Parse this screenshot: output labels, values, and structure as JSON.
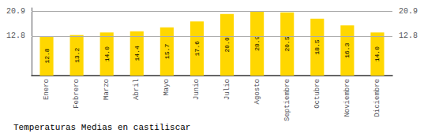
{
  "chart_data": {
    "type": "bar",
    "title": "Temperaturas Medias en castiliscar",
    "categories": [
      "Enero",
      "Febrero",
      "Marzo",
      "Abril",
      "Mayo",
      "Junio",
      "Julio",
      "Agosto",
      "Septiembre",
      "Octubre",
      "Noviembre",
      "Diciembre"
    ],
    "values": [
      12.8,
      13.2,
      14.0,
      14.4,
      15.7,
      17.6,
      20.0,
      20.9,
      20.5,
      18.5,
      16.3,
      14.0
    ],
    "value_labels": [
      "12.8",
      "13.2",
      "14.0",
      "14.4",
      "15.7",
      "17.6",
      "20.0",
      "20.9",
      "20.5",
      "18.5",
      "16.3",
      "14.0"
    ],
    "data_labels": true,
    "color": "#FFD700",
    "ylim": [
      0,
      22.0
    ],
    "yticks": [
      12.8,
      20.9
    ],
    "grid": true
  }
}
